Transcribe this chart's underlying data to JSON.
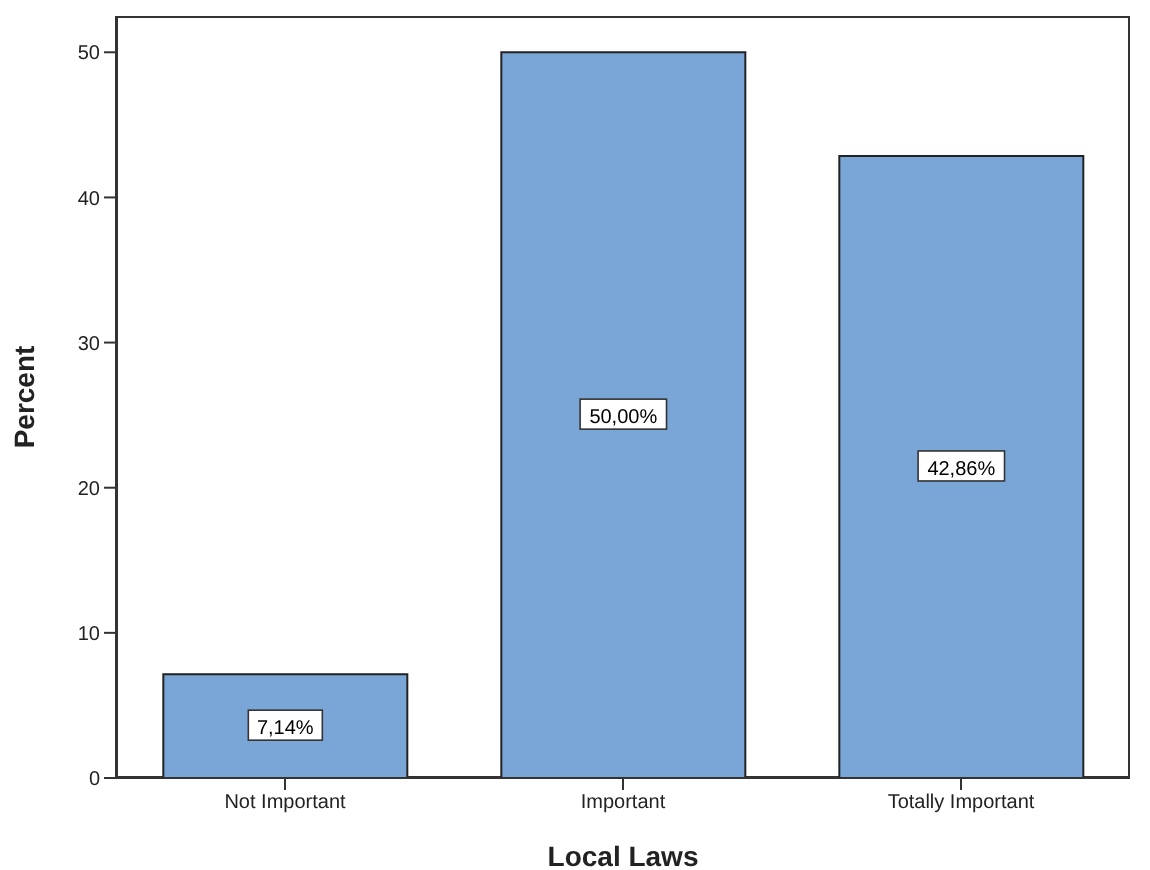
{
  "chart_data": {
    "type": "bar",
    "xlabel": "Local Laws",
    "ylabel": "Percent",
    "categories": [
      "Not Important",
      "Important",
      "Totally Important"
    ],
    "values": [
      7.14,
      50,
      42.86
    ],
    "value_labels": [
      "7,14%",
      "50,00%",
      "42,86%"
    ],
    "color": "#79a6d6",
    "ylim": [
      0,
      52.5
    ],
    "yticks": [
      0,
      10,
      20,
      30,
      40,
      50
    ]
  }
}
